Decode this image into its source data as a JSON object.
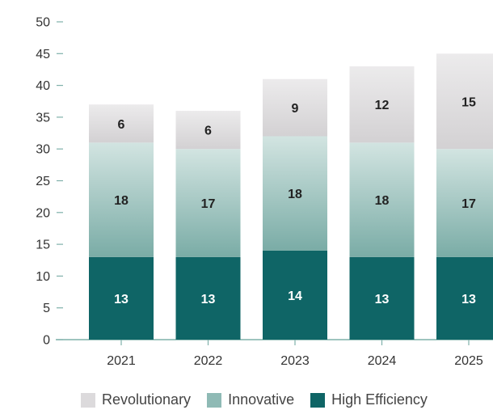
{
  "chart_data": {
    "type": "bar",
    "stacked": true,
    "categories": [
      "2021",
      "2022",
      "2023",
      "2024",
      "2025"
    ],
    "series": [
      {
        "name": "High Efficiency",
        "values": [
          13,
          13,
          14,
          13,
          13
        ],
        "color": "#0f6566",
        "label_color": "#ffffff"
      },
      {
        "name": "Innovative",
        "values": [
          18,
          17,
          18,
          18,
          17
        ],
        "color": "#8db8b4",
        "label_color": "#222222"
      },
      {
        "name": "Revolutionary",
        "values": [
          6,
          6,
          9,
          12,
          15
        ],
        "color": "#d9d8d9",
        "label_color": "#222222"
      }
    ],
    "ylim": [
      0,
      50
    ],
    "yticks": [
      0,
      5,
      10,
      15,
      20,
      25,
      30,
      35,
      40,
      45,
      50
    ],
    "grid": false,
    "legend_position": "bottom",
    "legend_order": [
      "Revolutionary",
      "Innovative",
      "High Efficiency"
    ],
    "axis_color": "#7fb0aa",
    "title": "",
    "xlabel": "",
    "ylabel": ""
  }
}
